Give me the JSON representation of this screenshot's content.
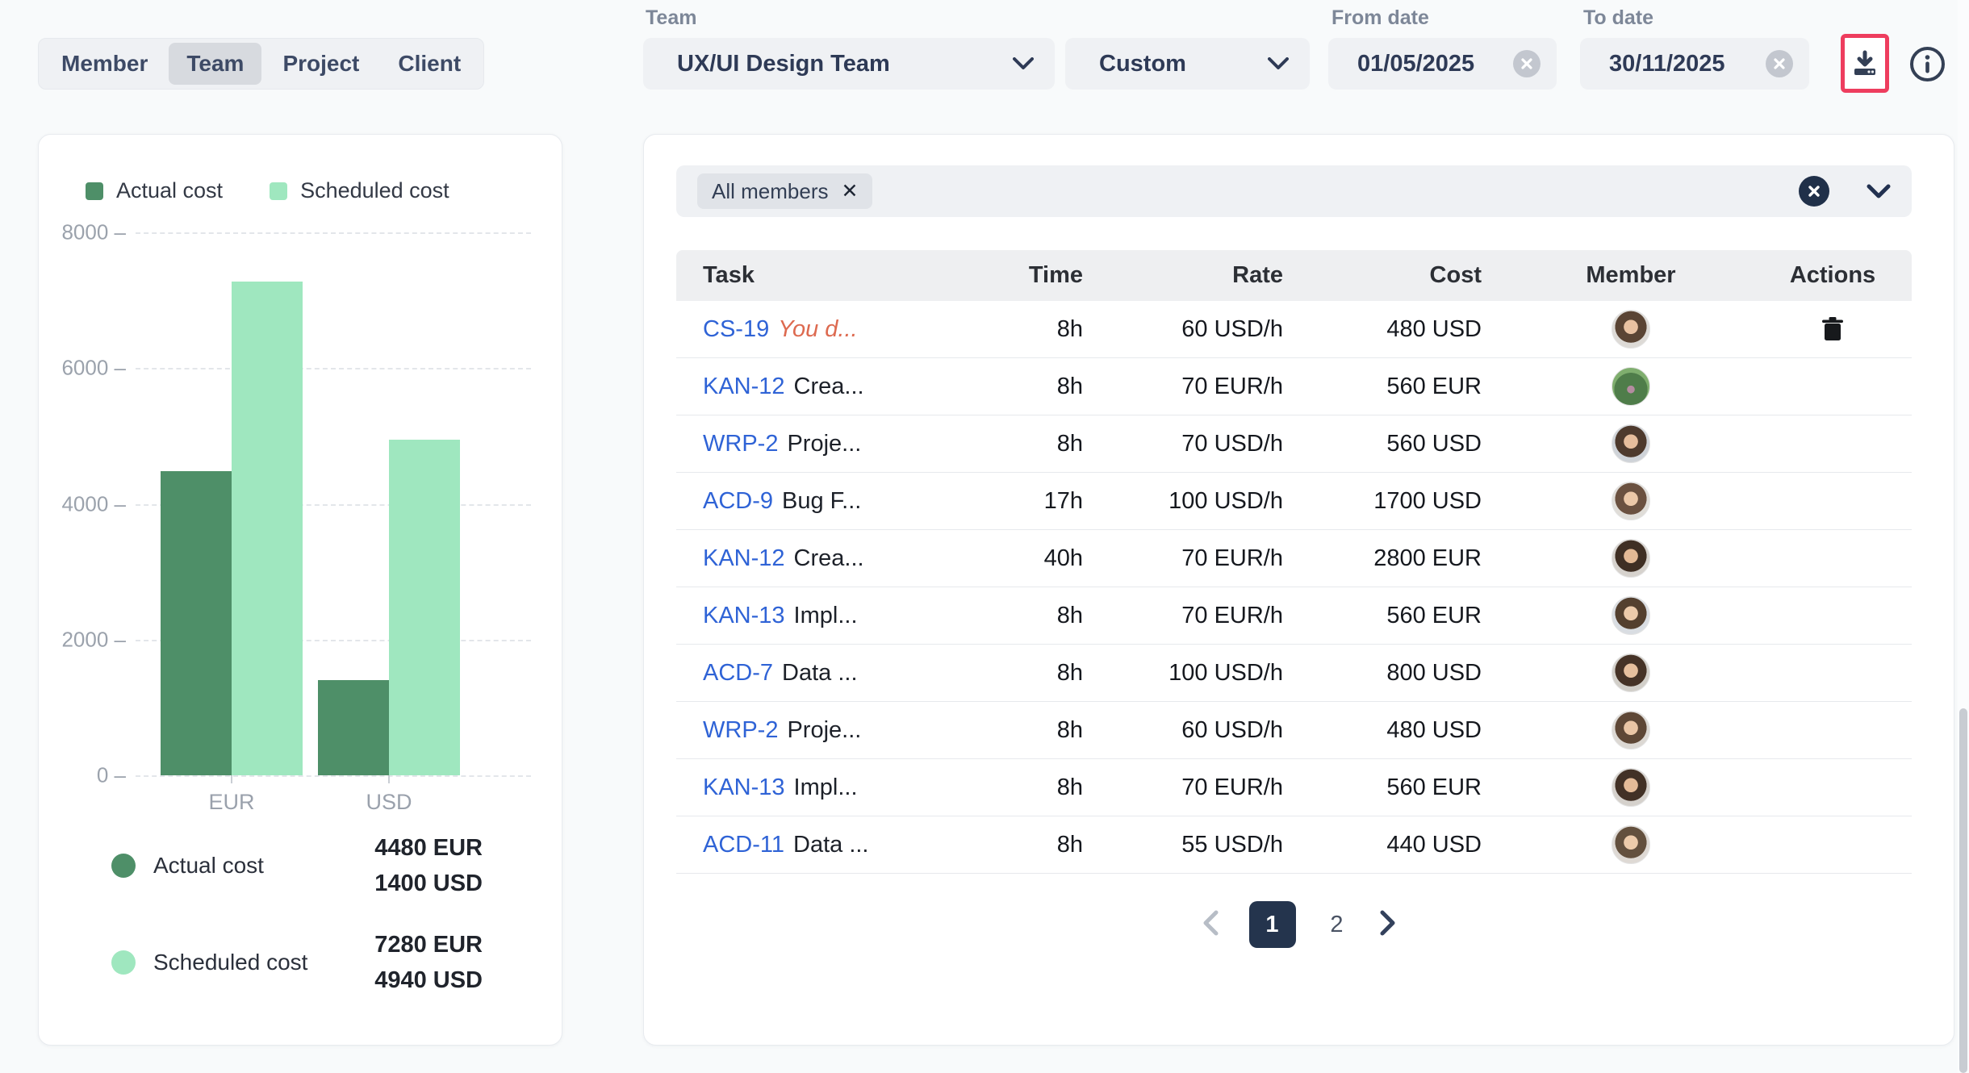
{
  "tabs": {
    "items": [
      {
        "label": "Member",
        "active": false
      },
      {
        "label": "Team",
        "active": true
      },
      {
        "label": "Project",
        "active": false
      },
      {
        "label": "Client",
        "active": false
      }
    ]
  },
  "filters": {
    "team": {
      "label": "Team",
      "value": "UX/UI Design Team"
    },
    "range": {
      "value": "Custom"
    },
    "from_date": {
      "label": "From date",
      "value": "01/05/2025"
    },
    "to_date": {
      "label": "To date",
      "value": "30/11/2025"
    }
  },
  "toolbar": {
    "icons": [
      "download-icon",
      "info-icon"
    ],
    "highlight_color": "#ee3d5e"
  },
  "chart_data": {
    "type": "bar",
    "categories": [
      "EUR",
      "USD"
    ],
    "series": [
      {
        "name": "Actual cost",
        "values": [
          4480,
          1400
        ],
        "color": "#4e8f68"
      },
      {
        "name": "Scheduled cost",
        "values": [
          7280,
          4940
        ],
        "color": "#9fe7bf"
      }
    ],
    "title": "",
    "xlabel": "",
    "ylabel": "",
    "ylim": [
      0,
      8000
    ],
    "yticks": [
      0,
      2000,
      4000,
      6000,
      8000
    ],
    "grid": true,
    "legend_position": "top",
    "summary": [
      {
        "name": "Actual cost",
        "color": "#4e8f68",
        "values": [
          "4480 EUR",
          "1400 USD"
        ]
      },
      {
        "name": "Scheduled cost",
        "color": "#9fe7bf",
        "values": [
          "7280 EUR",
          "4940 USD"
        ]
      }
    ]
  },
  "members_filter": {
    "chip": "All members",
    "icons": [
      "close-icon",
      "clear-all-icon",
      "chevron-down-icon"
    ]
  },
  "table": {
    "columns": [
      "Task",
      "Time",
      "Rate",
      "Cost",
      "Member",
      "Actions"
    ],
    "rows": [
      {
        "key": "CS-19",
        "title": "You d...",
        "title_style": "alert",
        "time": "8h",
        "rate": "60 USD/h",
        "cost": "480 USD",
        "has_delete": true
      },
      {
        "key": "KAN-12",
        "title": "Crea...",
        "title_style": "",
        "time": "8h",
        "rate": "70 EUR/h",
        "cost": "560 EUR",
        "has_delete": false
      },
      {
        "key": "WRP-2",
        "title": "Proje...",
        "title_style": "",
        "time": "8h",
        "rate": "70 USD/h",
        "cost": "560 USD",
        "has_delete": false
      },
      {
        "key": "ACD-9",
        "title": "Bug F...",
        "title_style": "",
        "time": "17h",
        "rate": "100 USD/h",
        "cost": "1700 USD",
        "has_delete": false
      },
      {
        "key": "KAN-12",
        "title": "Crea...",
        "title_style": "",
        "time": "40h",
        "rate": "70 EUR/h",
        "cost": "2800 EUR",
        "has_delete": false
      },
      {
        "key": "KAN-13",
        "title": "Impl...",
        "title_style": "",
        "time": "8h",
        "rate": "70 EUR/h",
        "cost": "560 EUR",
        "has_delete": false
      },
      {
        "key": "ACD-7",
        "title": "Data ...",
        "title_style": "",
        "time": "8h",
        "rate": "100 USD/h",
        "cost": "800 USD",
        "has_delete": false
      },
      {
        "key": "WRP-2",
        "title": "Proje...",
        "title_style": "",
        "time": "8h",
        "rate": "60 USD/h",
        "cost": "480 USD",
        "has_delete": false
      },
      {
        "key": "KAN-13",
        "title": "Impl...",
        "title_style": "",
        "time": "8h",
        "rate": "70 EUR/h",
        "cost": "560 EUR",
        "has_delete": false
      },
      {
        "key": "ACD-11",
        "title": "Data ...",
        "title_style": "",
        "time": "8h",
        "rate": "55 USD/h",
        "cost": "440 USD",
        "has_delete": false
      }
    ]
  },
  "pagination": {
    "pages": [
      "1",
      "2"
    ],
    "active": "1"
  }
}
